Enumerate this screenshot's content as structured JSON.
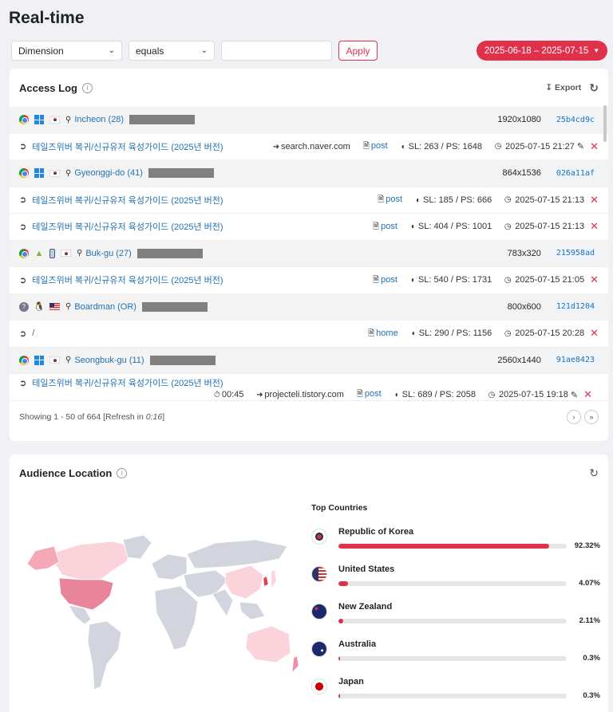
{
  "page": {
    "title": "Real-time"
  },
  "filters": {
    "dimension": "Dimension",
    "operator": "equals",
    "value_placeholder": "",
    "apply_label": "Apply",
    "date_range": "2025-06-18 – 2025-07-15"
  },
  "access_log": {
    "title": "Access Log",
    "export_label": "Export",
    "footer_showing": "Showing 1 - 50 of 664 [Refresh in ",
    "refresh_countdown": "0:16",
    "footer_close": "]",
    "visits": [
      {
        "browser": "chrome",
        "os": "windows",
        "device": null,
        "flag": "kr",
        "location": "Incheon (28)",
        "resolution": "1920x1080",
        "session": "25b4cd9c",
        "hits": [
          {
            "page": "테일즈위버 복귀/신규유저 육성가이드 (2025년 버전)",
            "referrer": "search.naver.com",
            "type": "post",
            "sl_ps": "SL: 263 / PS: 1648",
            "time": "2025-07-15 21:27",
            "edit": true
          }
        ]
      },
      {
        "browser": "chrome",
        "os": "windows",
        "device": null,
        "flag": "kr",
        "location": "Gyeonggi-do (41)",
        "resolution": "864x1536",
        "session": "026a11af",
        "hits": [
          {
            "page": "테일즈위버 복귀/신규유저 육성가이드 (2025년 버전)",
            "referrer": "",
            "type": "post",
            "sl_ps": "SL: 185 / PS: 666",
            "time": "2025-07-15 21:13",
            "edit": false
          },
          {
            "page": "테일즈위버 복귀/신규유저 육성가이드 (2025년 버전)",
            "referrer": "",
            "type": "post",
            "sl_ps": "SL: 404 / PS: 1001",
            "time": "2025-07-15 21:13",
            "edit": false
          }
        ]
      },
      {
        "browser": "chrome",
        "os": "android",
        "device": "phone",
        "flag": "kr",
        "location": "Buk-gu (27)",
        "resolution": "783x320",
        "session": "215958ad",
        "hits": [
          {
            "page": "테일즈위버 복귀/신규유저 육성가이드 (2025년 버전)",
            "referrer": "",
            "type": "post",
            "sl_ps": "SL: 540 / PS: 1731",
            "time": "2025-07-15 21:05",
            "edit": false
          }
        ]
      },
      {
        "browser": "unknown",
        "os": "linux",
        "device": null,
        "flag": "us",
        "location": "Boardman (OR)",
        "resolution": "800x600",
        "session": "121d1204",
        "hits": [
          {
            "page": "/",
            "referrer": "",
            "type": "home",
            "sl_ps": "SL: 290 / PS: 1156",
            "time": "2025-07-15 20:28",
            "edit": false
          }
        ]
      },
      {
        "browser": "chrome",
        "os": "windows",
        "device": null,
        "flag": "kr",
        "location": "Seongbuk-gu (11)",
        "resolution": "2560x1440",
        "session": "91ae8423",
        "hits": [
          {
            "page": "테일즈위버 복귀/신규유저 육성가이드 (2025년 버전)",
            "duration": "00:45",
            "referrer": "projecteli.tistory.com",
            "type": "post",
            "sl_ps": "SL: 689 / PS: 2058",
            "time": "2025-07-15 19:18",
            "edit": true
          }
        ]
      }
    ]
  },
  "audience": {
    "title": "Audience Location",
    "top_countries_label": "Top Countries",
    "countries": [
      {
        "name": "Republic of Korea",
        "pct": "92.32%",
        "value": 92.32,
        "flag": "kr"
      },
      {
        "name": "United States",
        "pct": "4.07%",
        "value": 4.07,
        "flag": "us"
      },
      {
        "name": "New Zealand",
        "pct": "2.11%",
        "value": 2.11,
        "flag": "nz"
      },
      {
        "name": "Australia",
        "pct": "0.3%",
        "value": 0.3,
        "flag": "au"
      },
      {
        "name": "Japan",
        "pct": "0.3%",
        "value": 0.3,
        "flag": "jp"
      }
    ]
  },
  "colors": {
    "accent": "#e0314b",
    "link": "#2271b1",
    "map_land": "#d3d5de",
    "map_high": "#f08fa3",
    "map_low": "#fbd3da",
    "map_top": "#e83e5a"
  }
}
